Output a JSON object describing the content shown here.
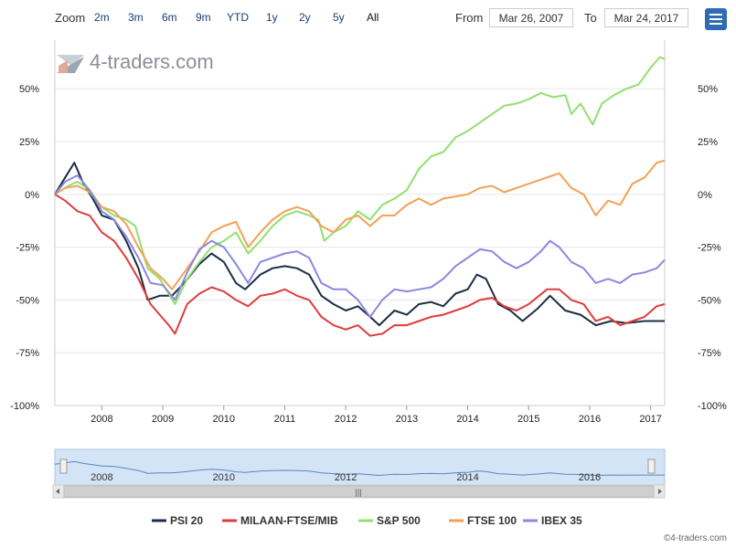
{
  "toolbar": {
    "zoom_label": "Zoom",
    "buttons": [
      "2m",
      "3m",
      "6m",
      "9m",
      "YTD",
      "1y",
      "2y",
      "5y",
      "All"
    ],
    "from_label": "From",
    "from_value": "Mar 26, 2007",
    "to_label": "To",
    "to_value": "Mar 24, 2017"
  },
  "watermark": "4-traders.com",
  "credit": "©4-traders.com",
  "navigator": {
    "labels": [
      "2008",
      "2010",
      "2012",
      "2014",
      "2016"
    ],
    "scroll_glyph": "|||"
  },
  "chart_data": {
    "type": "line",
    "title": "",
    "xlabel": "",
    "ylabel": "",
    "x_ticks": [
      "2008",
      "2009",
      "2010",
      "2011",
      "2012",
      "2013",
      "2014",
      "2015",
      "2016",
      "2017"
    ],
    "y_ticks": [
      "50%",
      "25%",
      "0%",
      "-25%",
      "-50%",
      "-75%",
      "-100%"
    ],
    "y_tick_values": [
      50,
      25,
      0,
      -25,
      -50,
      -75,
      -100
    ],
    "ylim": [
      -100,
      73
    ],
    "xlim": [
      2007.23,
      2017.23
    ],
    "grid": true,
    "legend_position": "bottom",
    "series": [
      {
        "name": "PSI 20",
        "color": "#1b2e44",
        "points": [
          [
            2007.23,
            0
          ],
          [
            2007.4,
            8
          ],
          [
            2007.55,
            15
          ],
          [
            2007.7,
            5
          ],
          [
            2007.85,
            -2
          ],
          [
            2008.0,
            -10
          ],
          [
            2008.2,
            -12
          ],
          [
            2008.4,
            -22
          ],
          [
            2008.6,
            -35
          ],
          [
            2008.75,
            -50
          ],
          [
            2008.95,
            -48
          ],
          [
            2009.15,
            -48
          ],
          [
            2009.35,
            -42
          ],
          [
            2009.6,
            -33
          ],
          [
            2009.8,
            -28
          ],
          [
            2010.0,
            -32
          ],
          [
            2010.2,
            -42
          ],
          [
            2010.35,
            -45
          ],
          [
            2010.6,
            -38
          ],
          [
            2010.8,
            -35
          ],
          [
            2011.0,
            -34
          ],
          [
            2011.2,
            -35
          ],
          [
            2011.4,
            -38
          ],
          [
            2011.6,
            -48
          ],
          [
            2011.8,
            -52
          ],
          [
            2012.0,
            -55
          ],
          [
            2012.2,
            -53
          ],
          [
            2012.4,
            -58
          ],
          [
            2012.55,
            -62
          ],
          [
            2012.8,
            -55
          ],
          [
            2013.0,
            -57
          ],
          [
            2013.2,
            -52
          ],
          [
            2013.4,
            -51
          ],
          [
            2013.6,
            -53
          ],
          [
            2013.8,
            -47
          ],
          [
            2014.0,
            -45
          ],
          [
            2014.15,
            -38
          ],
          [
            2014.3,
            -40
          ],
          [
            2014.5,
            -52
          ],
          [
            2014.7,
            -55
          ],
          [
            2014.9,
            -60
          ],
          [
            2015.15,
            -54
          ],
          [
            2015.35,
            -48
          ],
          [
            2015.6,
            -55
          ],
          [
            2015.85,
            -57
          ],
          [
            2016.1,
            -62
          ],
          [
            2016.35,
            -60
          ],
          [
            2016.6,
            -61
          ],
          [
            2016.9,
            -60
          ],
          [
            2017.1,
            -60
          ],
          [
            2017.23,
            -60
          ]
        ]
      },
      {
        "name": "MILAAN-FTSE/MIB",
        "color": "#e03b3b",
        "points": [
          [
            2007.23,
            0
          ],
          [
            2007.4,
            -3
          ],
          [
            2007.6,
            -8
          ],
          [
            2007.8,
            -10
          ],
          [
            2008.0,
            -18
          ],
          [
            2008.2,
            -22
          ],
          [
            2008.4,
            -30
          ],
          [
            2008.6,
            -40
          ],
          [
            2008.8,
            -52
          ],
          [
            2008.95,
            -57
          ],
          [
            2009.1,
            -62
          ],
          [
            2009.2,
            -66
          ],
          [
            2009.4,
            -52
          ],
          [
            2009.6,
            -47
          ],
          [
            2009.8,
            -44
          ],
          [
            2010.0,
            -46
          ],
          [
            2010.2,
            -50
          ],
          [
            2010.4,
            -53
          ],
          [
            2010.6,
            -48
          ],
          [
            2010.8,
            -47
          ],
          [
            2011.0,
            -45
          ],
          [
            2011.2,
            -48
          ],
          [
            2011.4,
            -50
          ],
          [
            2011.6,
            -58
          ],
          [
            2011.8,
            -62
          ],
          [
            2012.0,
            -64
          ],
          [
            2012.2,
            -62
          ],
          [
            2012.4,
            -67
          ],
          [
            2012.6,
            -66
          ],
          [
            2012.8,
            -62
          ],
          [
            2013.0,
            -62
          ],
          [
            2013.2,
            -60
          ],
          [
            2013.4,
            -58
          ],
          [
            2013.6,
            -57
          ],
          [
            2013.8,
            -55
          ],
          [
            2014.0,
            -53
          ],
          [
            2014.2,
            -50
          ],
          [
            2014.4,
            -49
          ],
          [
            2014.6,
            -53
          ],
          [
            2014.8,
            -55
          ],
          [
            2015.0,
            -52
          ],
          [
            2015.3,
            -45
          ],
          [
            2015.5,
            -45
          ],
          [
            2015.7,
            -50
          ],
          [
            2015.9,
            -52
          ],
          [
            2016.1,
            -60
          ],
          [
            2016.3,
            -58
          ],
          [
            2016.5,
            -62
          ],
          [
            2016.7,
            -60
          ],
          [
            2016.9,
            -58
          ],
          [
            2017.1,
            -53
          ],
          [
            2017.23,
            -52
          ]
        ]
      },
      {
        "name": "S&P 500",
        "color": "#90e070",
        "points": [
          [
            2007.23,
            0
          ],
          [
            2007.45,
            4
          ],
          [
            2007.6,
            6
          ],
          [
            2007.8,
            2
          ],
          [
            2008.0,
            -6
          ],
          [
            2008.2,
            -10
          ],
          [
            2008.4,
            -12
          ],
          [
            2008.55,
            -15
          ],
          [
            2008.75,
            -35
          ],
          [
            2008.95,
            -40
          ],
          [
            2009.2,
            -52
          ],
          [
            2009.4,
            -40
          ],
          [
            2009.6,
            -32
          ],
          [
            2009.8,
            -25
          ],
          [
            2010.0,
            -22
          ],
          [
            2010.2,
            -18
          ],
          [
            2010.4,
            -28
          ],
          [
            2010.6,
            -22
          ],
          [
            2010.8,
            -15
          ],
          [
            2011.0,
            -10
          ],
          [
            2011.2,
            -8
          ],
          [
            2011.4,
            -10
          ],
          [
            2011.55,
            -12
          ],
          [
            2011.65,
            -22
          ],
          [
            2011.8,
            -18
          ],
          [
            2012.0,
            -15
          ],
          [
            2012.2,
            -8
          ],
          [
            2012.4,
            -12
          ],
          [
            2012.6,
            -5
          ],
          [
            2012.8,
            -2
          ],
          [
            2013.0,
            2
          ],
          [
            2013.2,
            12
          ],
          [
            2013.4,
            18
          ],
          [
            2013.6,
            20
          ],
          [
            2013.8,
            27
          ],
          [
            2014.0,
            30
          ],
          [
            2014.2,
            34
          ],
          [
            2014.4,
            38
          ],
          [
            2014.6,
            42
          ],
          [
            2014.8,
            43
          ],
          [
            2015.0,
            45
          ],
          [
            2015.2,
            48
          ],
          [
            2015.4,
            46
          ],
          [
            2015.6,
            47
          ],
          [
            2015.7,
            38
          ],
          [
            2015.85,
            43
          ],
          [
            2016.05,
            33
          ],
          [
            2016.2,
            43
          ],
          [
            2016.4,
            47
          ],
          [
            2016.6,
            50
          ],
          [
            2016.8,
            52
          ],
          [
            2017.0,
            60
          ],
          [
            2017.15,
            65
          ],
          [
            2017.23,
            64
          ]
        ]
      },
      {
        "name": "FTSE 100",
        "color": "#f5a055",
        "points": [
          [
            2007.23,
            0
          ],
          [
            2007.4,
            3
          ],
          [
            2007.6,
            4
          ],
          [
            2007.8,
            1
          ],
          [
            2008.0,
            -6
          ],
          [
            2008.2,
            -8
          ],
          [
            2008.4,
            -14
          ],
          [
            2008.6,
            -25
          ],
          [
            2008.8,
            -35
          ],
          [
            2009.0,
            -40
          ],
          [
            2009.15,
            -45
          ],
          [
            2009.35,
            -37
          ],
          [
            2009.6,
            -27
          ],
          [
            2009.8,
            -18
          ],
          [
            2010.0,
            -15
          ],
          [
            2010.2,
            -13
          ],
          [
            2010.4,
            -25
          ],
          [
            2010.6,
            -18
          ],
          [
            2010.8,
            -12
          ],
          [
            2011.0,
            -8
          ],
          [
            2011.2,
            -6
          ],
          [
            2011.4,
            -8
          ],
          [
            2011.6,
            -15
          ],
          [
            2011.8,
            -18
          ],
          [
            2012.0,
            -12
          ],
          [
            2012.2,
            -10
          ],
          [
            2012.4,
            -15
          ],
          [
            2012.6,
            -10
          ],
          [
            2012.8,
            -10
          ],
          [
            2013.0,
            -5
          ],
          [
            2013.2,
            -2
          ],
          [
            2013.4,
            -5
          ],
          [
            2013.6,
            -2
          ],
          [
            2013.8,
            -1
          ],
          [
            2014.0,
            0
          ],
          [
            2014.2,
            3
          ],
          [
            2014.4,
            4
          ],
          [
            2014.6,
            1
          ],
          [
            2014.8,
            3
          ],
          [
            2015.0,
            5
          ],
          [
            2015.3,
            8
          ],
          [
            2015.5,
            10
          ],
          [
            2015.7,
            3
          ],
          [
            2015.9,
            0
          ],
          [
            2016.1,
            -10
          ],
          [
            2016.3,
            -3
          ],
          [
            2016.5,
            -5
          ],
          [
            2016.7,
            5
          ],
          [
            2016.9,
            8
          ],
          [
            2017.1,
            15
          ],
          [
            2017.23,
            16
          ]
        ]
      },
      {
        "name": "IBEX 35",
        "color": "#8c87e0",
        "points": [
          [
            2007.23,
            0
          ],
          [
            2007.4,
            6
          ],
          [
            2007.6,
            9
          ],
          [
            2007.8,
            2
          ],
          [
            2008.0,
            -8
          ],
          [
            2008.2,
            -12
          ],
          [
            2008.4,
            -20
          ],
          [
            2008.6,
            -30
          ],
          [
            2008.8,
            -42
          ],
          [
            2009.0,
            -43
          ],
          [
            2009.2,
            -50
          ],
          [
            2009.4,
            -37
          ],
          [
            2009.6,
            -26
          ],
          [
            2009.8,
            -22
          ],
          [
            2010.0,
            -25
          ],
          [
            2010.2,
            -33
          ],
          [
            2010.4,
            -42
          ],
          [
            2010.6,
            -32
          ],
          [
            2010.8,
            -30
          ],
          [
            2011.0,
            -28
          ],
          [
            2011.2,
            -27
          ],
          [
            2011.4,
            -30
          ],
          [
            2011.6,
            -42
          ],
          [
            2011.8,
            -45
          ],
          [
            2012.0,
            -45
          ],
          [
            2012.2,
            -50
          ],
          [
            2012.4,
            -58
          ],
          [
            2012.6,
            -50
          ],
          [
            2012.8,
            -45
          ],
          [
            2013.0,
            -46
          ],
          [
            2013.2,
            -45
          ],
          [
            2013.4,
            -44
          ],
          [
            2013.6,
            -40
          ],
          [
            2013.8,
            -34
          ],
          [
            2014.0,
            -30
          ],
          [
            2014.2,
            -26
          ],
          [
            2014.4,
            -27
          ],
          [
            2014.6,
            -32
          ],
          [
            2014.8,
            -35
          ],
          [
            2015.0,
            -32
          ],
          [
            2015.2,
            -27
          ],
          [
            2015.35,
            -22
          ],
          [
            2015.5,
            -25
          ],
          [
            2015.7,
            -32
          ],
          [
            2015.9,
            -35
          ],
          [
            2016.1,
            -42
          ],
          [
            2016.3,
            -40
          ],
          [
            2016.5,
            -42
          ],
          [
            2016.7,
            -38
          ],
          [
            2016.9,
            -37
          ],
          [
            2017.1,
            -35
          ],
          [
            2017.23,
            -31
          ]
        ]
      }
    ]
  }
}
